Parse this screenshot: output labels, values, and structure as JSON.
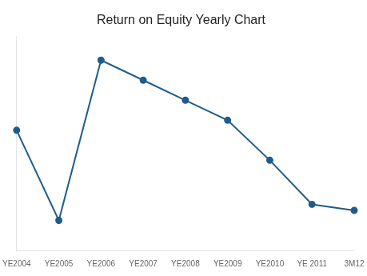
{
  "chart_data": {
    "type": "line",
    "title": "Return on Equity Yearly Chart",
    "categories": [
      "YE2004",
      "YE2005",
      "YE2006",
      "YE2007",
      "YE2008",
      "YE2009",
      "YE2010",
      "YE 2011",
      "3M12"
    ],
    "values": [
      55,
      10,
      90,
      80,
      70,
      60,
      40,
      18,
      15
    ],
    "color": "#1f5c8b",
    "marker": "circle",
    "ylim": [
      -5,
      102
    ],
    "yticks": [],
    "grid": false,
    "tick_labels": "x"
  }
}
